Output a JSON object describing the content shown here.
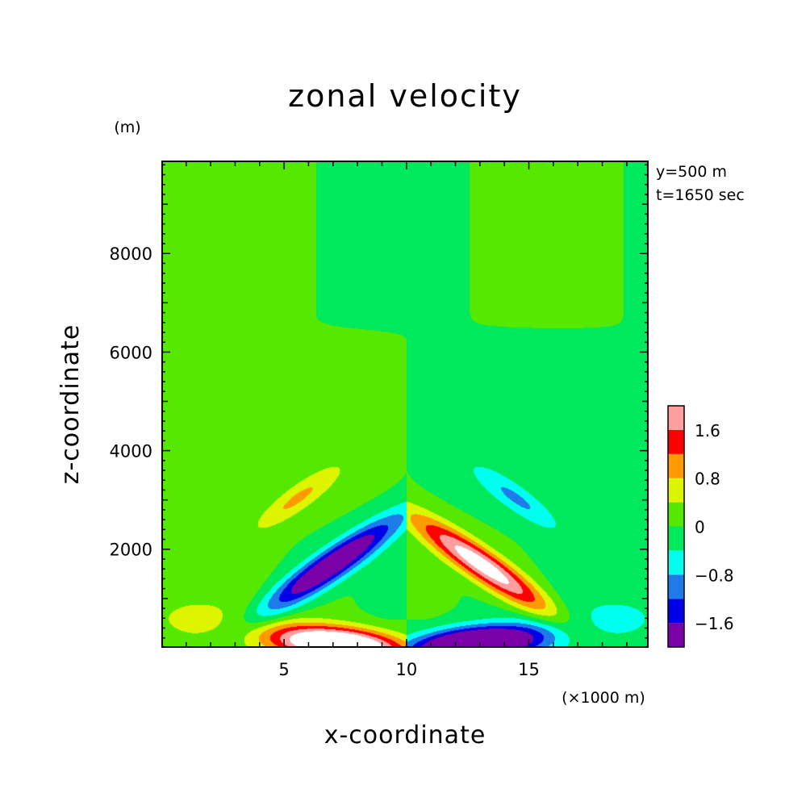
{
  "chart_data": {
    "type": "heatmap",
    "title": "zonal velocity",
    "xlabel": "x-coordinate",
    "ylabel": "z-coordinate",
    "x_unit": "(×1000 m)",
    "y_unit": "(m)",
    "xlim": [
      0.02,
      19.86
    ],
    "ylim": [
      15,
      9870
    ],
    "x_ticks": [
      5,
      10,
      15
    ],
    "y_ticks": [
      2000,
      4000,
      6000,
      8000
    ],
    "annotations": [
      "y=500 m",
      "t=1650 sec"
    ],
    "colorbar": {
      "levels": [
        -2.0,
        -1.6,
        -1.2,
        -0.8,
        -0.4,
        0,
        0.4,
        0.8,
        1.2,
        1.6,
        2.0
      ],
      "tick_labels": [
        "1.6",
        "0.8",
        "0",
        "−0.8",
        "−1.6"
      ],
      "tick_values": [
        1.6,
        0.8,
        0,
        -0.8,
        -1.6
      ],
      "colors": [
        "#7a00a8",
        "#0000e6",
        "#1f7be8",
        "#00ffee",
        "#00e85c",
        "#55e800",
        "#ddf500",
        "#ff9a00",
        "#ff0000",
        "#ff9e9e"
      ],
      "over_color": "#ffffff"
    },
    "field_description": "Antisymmetric zonal velocity about x=10 km: negative lobes left / positive lobes right near z=1200-2600 m; positive near-surface on left, negative near-surface on right; weak opposite-sign lobes near z=3000 m; background ~0"
  }
}
